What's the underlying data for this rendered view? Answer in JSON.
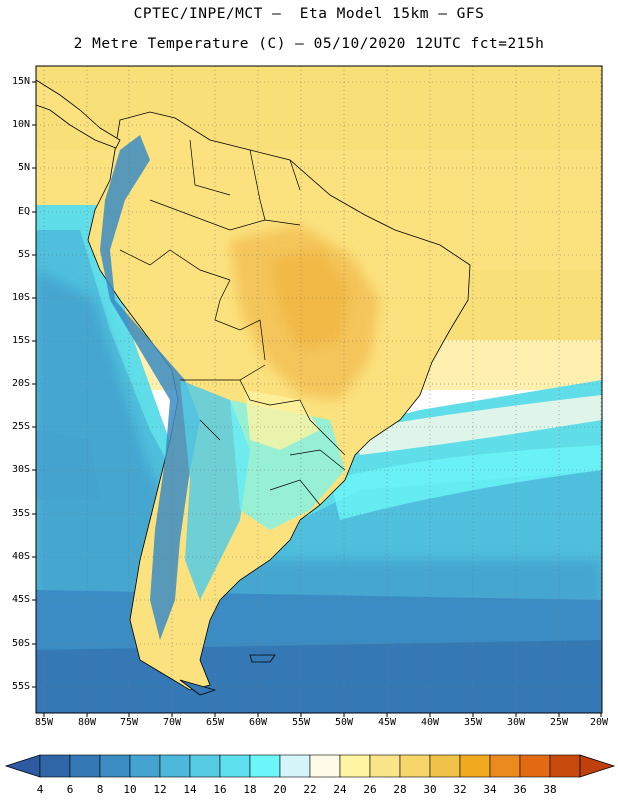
{
  "title_line1": "CPTEC/INPE/MCT –  Eta Model 15km – GFS",
  "title_line2": "2 Metre Temperature (C) – 05/10/2020 12UTC fct=215h",
  "lat_labels": [
    "15N",
    "10N",
    "5N",
    "EQ",
    "5S",
    "10S",
    "15S",
    "20S",
    "25S",
    "30S",
    "35S",
    "40S",
    "45S",
    "50S",
    "55S"
  ],
  "lon_labels": [
    "85W",
    "80W",
    "75W",
    "70W",
    "65W",
    "60W",
    "55W",
    "50W",
    "45W",
    "40W",
    "35W",
    "30W",
    "25W",
    "20W"
  ],
  "colorbar": {
    "labels": [
      "4",
      "6",
      "8",
      "10",
      "12",
      "14",
      "16",
      "18",
      "20",
      "22",
      "24",
      "26",
      "28",
      "30",
      "32",
      "34",
      "36",
      "38"
    ],
    "colors": [
      "#2e66a8",
      "#3478b6",
      "#3b8dc2",
      "#44a3cf",
      "#4db8db",
      "#55cbe4",
      "#5ee0ee",
      "#6cf6f8",
      "#d4f6fb",
      "#fffbe8",
      "#fff4a1",
      "#fbe58a",
      "#f6d56b",
      "#f1c249",
      "#f0aa20",
      "#ea8a1f",
      "#e26a12",
      "#c7490c"
    ],
    "under_color": "#2d5aa0",
    "over_color": "#c0400d"
  },
  "colors": {
    "ocean_north": "#fbe07a",
    "land_tropical": "#fbe27e",
    "land_hot": "#f4c55a",
    "cool_ocean": "#5fdde8",
    "cold_ocean": "#3b8cc4",
    "coast_line": "#000000"
  }
}
